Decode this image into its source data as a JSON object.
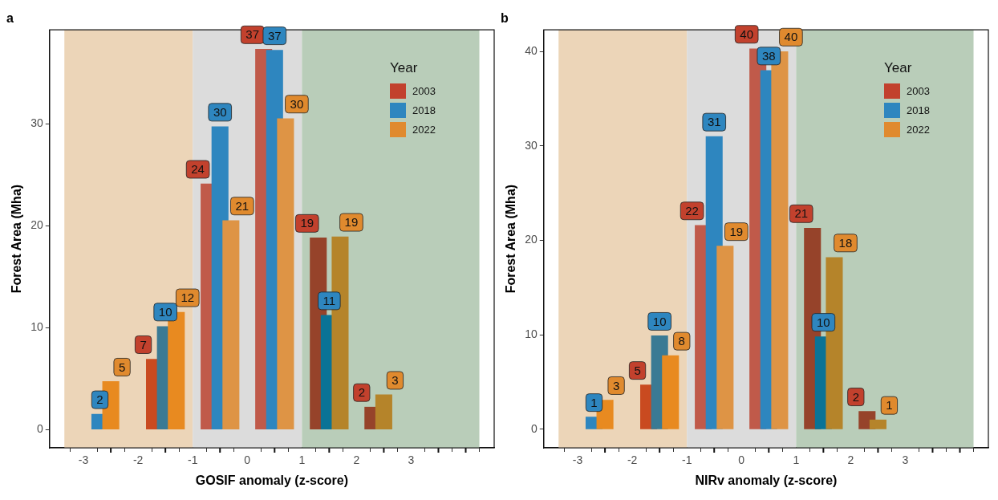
{
  "chart_data": [
    {
      "type": "bar",
      "title": "a",
      "xlabel": "GOSIF anomaly (z-score)",
      "ylabel": "Forest Area (Mha)",
      "legend_title": "Year",
      "legend": "top right",
      "series": [
        {
          "name": "2003",
          "color": "#c2412d",
          "colors": [
            "#c94a20",
            "#c05a4a",
            "#c05a4a",
            "#96432a",
            "#96432a"
          ],
          "x": [
            -1.7,
            -0.7,
            0.3,
            1.3,
            2.3
          ],
          "values": [
            6.9,
            24.1,
            37.3,
            18.8,
            2.2
          ],
          "value_labels": [
            "7",
            "24",
            "37",
            "19",
            "2"
          ]
        },
        {
          "name": "2018",
          "color": "#2e86bf",
          "colors": [
            "#2e86bf",
            "#3a7a94",
            "#2e86bf",
            "#2e86bf",
            "#0a7396"
          ],
          "x": [
            -2.7,
            -1.5,
            -0.5,
            0.5,
            1.5
          ],
          "values": [
            1.5,
            10.1,
            29.7,
            37.2,
            11.2
          ],
          "value_labels": [
            "2",
            "10",
            "30",
            "37",
            "11"
          ]
        },
        {
          "name": "2022",
          "color": "#e08a2e",
          "colors": [
            "#e88a20",
            "#e88a20",
            "#de9445",
            "#de9445",
            "#b5842a",
            "#b5842a"
          ],
          "x": [
            -2.5,
            -1.3,
            -0.3,
            0.7,
            1.7,
            2.5
          ],
          "values": [
            4.7,
            11.5,
            20.5,
            30.5,
            18.9,
            3.4
          ],
          "value_labels": [
            "5",
            "12",
            "21",
            "30",
            "19",
            "3"
          ]
        }
      ],
      "xlim": [
        -3.35,
        4.25
      ],
      "xticks": [
        -3,
        {
          "value": -2.5,
          "label": null
        },
        -2,
        {
          "value": -1.5,
          "label": null
        },
        -1,
        {
          "value": -0.5,
          "label": null
        },
        0,
        {
          "value": 0.5,
          "label": null
        },
        1,
        {
          "value": 1.5,
          "label": null
        },
        2,
        {
          "value": 2.5,
          "label": null
        },
        3,
        {
          "value": 3.5,
          "label": null
        },
        {
          "value": 4,
          "label": null
        }
      ],
      "ylim": [
        -1.8,
        39.2
      ],
      "yticks": [
        0,
        10,
        20,
        30
      ],
      "bands": [
        {
          "axis": "x",
          "from": -3.35,
          "to": -1,
          "color": "#ecd5b8"
        },
        {
          "axis": "x",
          "from": -1,
          "to": 1,
          "color": "#dcdcdc"
        },
        {
          "axis": "x",
          "from": 1,
          "to": 4.25,
          "color": "#b9cdb9"
        }
      ]
    },
    {
      "type": "bar",
      "title": "b",
      "xlabel": "NIRv anomaly (z-score)",
      "ylabel": "Forest Area (Mha)",
      "legend_title": "Year",
      "legend": "top right",
      "series": [
        {
          "name": "2003",
          "color": "#c2412d",
          "colors": [
            "#c94a20",
            "#c05a4a",
            "#c05a4a",
            "#96432a",
            "#96432a"
          ],
          "x": [
            -1.7,
            -0.7,
            0.3,
            1.3,
            2.3
          ],
          "values": [
            4.7,
            21.6,
            40.3,
            21.3,
            1.9
          ],
          "value_labels": [
            "5",
            "22",
            "40",
            "21",
            "2"
          ]
        },
        {
          "name": "2018",
          "color": "#2e86bf",
          "colors": [
            "#2e86bf",
            "#3a7a94",
            "#2e86bf",
            "#2e86bf",
            "#0a7396"
          ],
          "x": [
            -2.7,
            -1.5,
            -0.5,
            0.5,
            1.5
          ],
          "values": [
            1.3,
            9.9,
            31.0,
            38.0,
            9.8
          ],
          "value_labels": [
            "1",
            "10",
            "31",
            "38",
            "10"
          ]
        },
        {
          "name": "2022",
          "color": "#e08a2e",
          "colors": [
            "#e88a20",
            "#e88a20",
            "#de9445",
            "#de9445",
            "#b5842a",
            "#b5842a"
          ],
          "x": [
            -2.5,
            -1.3,
            -0.3,
            0.7,
            1.7,
            2.5
          ],
          "values": [
            3.1,
            7.8,
            19.4,
            40.0,
            18.2,
            1.0
          ],
          "value_labels": [
            "3",
            "8",
            "19",
            "40",
            "18",
            "1"
          ]
        }
      ],
      "xlim": [
        -3.35,
        4.25
      ],
      "xticks": [
        -3,
        {
          "value": -2.5,
          "label": null
        },
        -2,
        {
          "value": -1.5,
          "label": null
        },
        -1,
        {
          "value": -0.5,
          "label": null
        },
        0,
        {
          "value": 0.5,
          "label": null
        },
        1,
        {
          "value": 1.5,
          "label": null
        },
        2,
        {
          "value": 2.5,
          "label": null
        },
        3,
        {
          "value": 3.5,
          "label": null
        },
        {
          "value": 4,
          "label": null
        }
      ],
      "ylim": [
        -1.96,
        42.3
      ],
      "yticks": [
        0,
        10,
        20,
        30,
        40
      ],
      "bands": [
        {
          "axis": "x",
          "from": -3.35,
          "to": -1,
          "color": "#ecd5b8"
        },
        {
          "axis": "x",
          "from": -1,
          "to": 1,
          "color": "#dcdcdc"
        },
        {
          "axis": "x",
          "from": 1,
          "to": 4.25,
          "color": "#b9cdb9"
        }
      ]
    }
  ]
}
